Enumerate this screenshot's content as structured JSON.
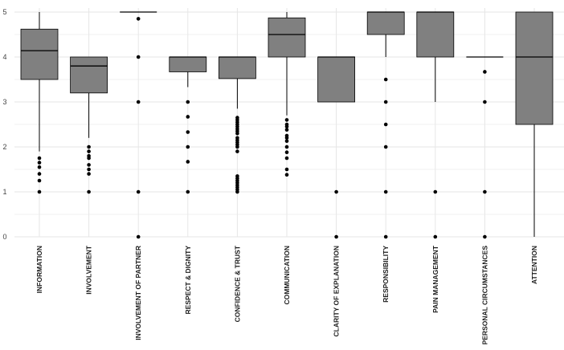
{
  "chart_data": {
    "type": "boxplot",
    "title": "",
    "xlabel": "",
    "ylabel": "",
    "ylim": [
      0,
      5
    ],
    "yticks": [
      "0",
      "1",
      "2",
      "3",
      "4",
      "5"
    ],
    "grid": true,
    "colors": {
      "box": "#808080",
      "line": "#000000",
      "grid": "#e6e6e6"
    },
    "categories": [
      {
        "label": "INFORMATION",
        "q1": 3.5,
        "median": 4.14,
        "q3": 4.62,
        "whisker_low": 1.9,
        "whisker_high": 5.0,
        "outliers": [
          1.0,
          1.25,
          1.4,
          1.55,
          1.65,
          1.75
        ]
      },
      {
        "label": "INVOLVEMENT",
        "q1": 3.2,
        "median": 3.8,
        "q3": 4.0,
        "whisker_low": 2.2,
        "whisker_high": 4.0,
        "outliers": [
          1.0,
          1.4,
          1.5,
          1.6,
          1.75,
          1.8,
          1.9,
          2.0
        ]
      },
      {
        "label": "INVOLVEMENT OF PARTNER",
        "q1": 5.0,
        "median": 5.0,
        "q3": 5.0,
        "whisker_low": 5.0,
        "whisker_high": 5.0,
        "outliers": [
          0,
          1.0,
          3.0,
          4.0,
          4.85
        ]
      },
      {
        "label": "RESPECT & DIGNITY",
        "q1": 3.67,
        "median": 4.0,
        "q3": 4.0,
        "whisker_low": 3.33,
        "whisker_high": 4.0,
        "outliers": [
          1.0,
          1.67,
          2.0,
          2.33,
          2.67,
          3.0
        ]
      },
      {
        "label": "CONFIDENCE & TRUST",
        "q1": 3.52,
        "median": 4.0,
        "q3": 4.0,
        "whisker_low": 2.85,
        "whisker_high": 4.0,
        "outliers": [
          1.0,
          1.05,
          1.1,
          1.15,
          1.2,
          1.25,
          1.3,
          1.35,
          1.9,
          2.0,
          2.05,
          2.1,
          2.15,
          2.2,
          2.3,
          2.35,
          2.4,
          2.45,
          2.5,
          2.55,
          2.6,
          2.65
        ]
      },
      {
        "label": "COMMUNICATION",
        "q1": 4.0,
        "median": 4.5,
        "q3": 4.87,
        "whisker_low": 2.7,
        "whisker_high": 5.0,
        "outliers": [
          1.38,
          1.5,
          1.75,
          1.88,
          2.0,
          2.13,
          2.2,
          2.25,
          2.38,
          2.45,
          2.5,
          2.6
        ]
      },
      {
        "label": "CLARITY OF EXPLANATION",
        "q1": 3.0,
        "median": 4.0,
        "q3": 4.0,
        "whisker_low": 3.0,
        "whisker_high": 4.0,
        "outliers": [
          0,
          1.0
        ]
      },
      {
        "label": "RESPONSIBILITY",
        "q1": 4.5,
        "median": 5.0,
        "q3": 5.0,
        "whisker_low": 4.0,
        "whisker_high": 5.0,
        "outliers": [
          0,
          1.0,
          2.0,
          2.5,
          3.0,
          3.5
        ]
      },
      {
        "label": "PAIN MANAGEMENT",
        "q1": 4.0,
        "median": 5.0,
        "q3": 5.0,
        "whisker_low": 3.0,
        "whisker_high": 5.0,
        "outliers": [
          0,
          1.0
        ]
      },
      {
        "label": "PERSONAL CIRCUMSTANCES",
        "q1": 4.0,
        "median": 4.0,
        "q3": 4.0,
        "whisker_low": 4.0,
        "whisker_high": 4.0,
        "outliers": [
          0,
          1.0,
          3.0,
          3.67
        ]
      },
      {
        "label": "ATTENTION",
        "q1": 2.5,
        "median": 4.0,
        "q3": 5.0,
        "whisker_low": 0,
        "whisker_high": 5.0,
        "outliers": []
      }
    ]
  }
}
